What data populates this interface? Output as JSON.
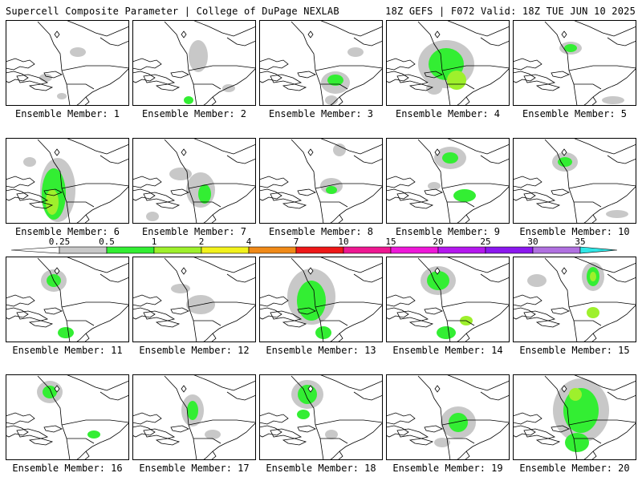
{
  "header": {
    "left_title": "Supercell Composite Parameter | College of DuPage NEXLAB",
    "right_title": "18Z GEFS | F072 Valid: 18Z TUE JUN 10 2025"
  },
  "colors": {
    "coastline": "#000000",
    "levels": [
      "#c8c8c8",
      "#33ee33",
      "#9ef02c",
      "#f2f21c",
      "#f08a18",
      "#ee1818",
      "#ee1891",
      "#ee18d8",
      "#b418ee",
      "#8b18ee",
      "#b070e0",
      "#30e6e6"
    ]
  },
  "colorbar": {
    "levels": [
      "0.25",
      "0.5",
      "1",
      "2",
      "4",
      "7",
      "10",
      "15",
      "20",
      "25",
      "30",
      "35"
    ]
  },
  "panels": [
    {
      "label": "Ensemble Member: 1",
      "blobs": [
        [
          50,
          72,
          8,
          5,
          0
        ],
        [
          90,
          40,
          10,
          6,
          0
        ],
        [
          70,
          95,
          6,
          4,
          0
        ]
      ]
    },
    {
      "label": "Ensemble Member: 2",
      "blobs": [
        [
          82,
          45,
          12,
          20,
          0
        ],
        [
          70,
          100,
          6,
          5,
          1
        ],
        [
          120,
          85,
          8,
          5,
          0
        ]
      ]
    },
    {
      "label": "Ensemble Member: 3",
      "blobs": [
        [
          95,
          78,
          18,
          14,
          0
        ],
        [
          95,
          75,
          10,
          7,
          1
        ],
        [
          90,
          100,
          8,
          6,
          0
        ],
        [
          120,
          40,
          10,
          6,
          0
        ]
      ]
    },
    {
      "label": "Ensemble Member: 4",
      "blobs": [
        [
          75,
          55,
          35,
          30,
          0
        ],
        [
          75,
          55,
          22,
          20,
          1
        ],
        [
          88,
          75,
          12,
          12,
          2
        ],
        [
          60,
          85,
          10,
          8,
          0
        ]
      ]
    },
    {
      "label": "Ensemble Member: 5",
      "blobs": [
        [
          72,
          35,
          14,
          8,
          0
        ],
        [
          72,
          35,
          8,
          5,
          1
        ],
        [
          125,
          100,
          14,
          5,
          0
        ]
      ]
    }
  ],
  "panels_row2": [
    {
      "label": "Ensemble Member: 6",
      "blobs": [
        [
          65,
          65,
          22,
          40,
          0
        ],
        [
          60,
          70,
          15,
          32,
          1
        ],
        [
          58,
          80,
          8,
          16,
          2
        ],
        [
          30,
          30,
          8,
          6,
          0
        ]
      ]
    },
    {
      "label": "Ensemble Member: 7",
      "blobs": [
        [
          85,
          65,
          18,
          22,
          0
        ],
        [
          90,
          70,
          8,
          12,
          1
        ],
        [
          60,
          45,
          14,
          8,
          0
        ],
        [
          25,
          98,
          8,
          6,
          0
        ]
      ]
    },
    {
      "label": "Ensemble Member: 8",
      "blobs": [
        [
          90,
          60,
          14,
          10,
          0
        ],
        [
          90,
          65,
          7,
          5,
          1
        ],
        [
          100,
          15,
          8,
          8,
          0
        ]
      ]
    },
    {
      "label": "Ensemble Member: 9",
      "blobs": [
        [
          80,
          25,
          20,
          14,
          0
        ],
        [
          80,
          25,
          10,
          7,
          1
        ],
        [
          98,
          72,
          14,
          8,
          1
        ],
        [
          60,
          60,
          8,
          5,
          0
        ]
      ]
    },
    {
      "label": "Ensemble Member: 10",
      "blobs": [
        [
          65,
          30,
          16,
          12,
          0
        ],
        [
          65,
          30,
          9,
          6,
          1
        ],
        [
          130,
          95,
          14,
          5,
          0
        ]
      ]
    }
  ],
  "panels_row3": [
    {
      "label": "Ensemble Member: 11",
      "blobs": [
        [
          60,
          30,
          16,
          14,
          0
        ],
        [
          60,
          30,
          9,
          8,
          1
        ],
        [
          75,
          95,
          10,
          7,
          1
        ]
      ]
    },
    {
      "label": "Ensemble Member: 12",
      "blobs": [
        [
          85,
          60,
          18,
          12,
          0
        ],
        [
          60,
          40,
          12,
          6,
          0
        ]
      ]
    },
    {
      "label": "Ensemble Member: 13",
      "blobs": [
        [
          65,
          50,
          30,
          35,
          0
        ],
        [
          65,
          55,
          18,
          25,
          1
        ],
        [
          80,
          95,
          10,
          8,
          1
        ]
      ]
    },
    {
      "label": "Ensemble Member: 14",
      "blobs": [
        [
          65,
          30,
          22,
          18,
          0
        ],
        [
          65,
          30,
          14,
          12,
          1
        ],
        [
          75,
          95,
          12,
          8,
          1
        ],
        [
          100,
          80,
          8,
          6,
          2
        ]
      ]
    },
    {
      "label": "Ensemble Member: 15",
      "blobs": [
        [
          100,
          25,
          14,
          18,
          0
        ],
        [
          100,
          25,
          8,
          12,
          1
        ],
        [
          100,
          25,
          4,
          6,
          2
        ],
        [
          100,
          70,
          8,
          7,
          2
        ],
        [
          30,
          30,
          12,
          8,
          0
        ]
      ]
    }
  ],
  "panels_row4": [
    {
      "label": "Ensemble Member: 16",
      "blobs": [
        [
          55,
          22,
          16,
          14,
          0
        ],
        [
          55,
          22,
          9,
          8,
          1
        ],
        [
          110,
          75,
          8,
          5,
          1
        ]
      ]
    },
    {
      "label": "Ensemble Member: 17",
      "blobs": [
        [
          75,
          45,
          14,
          20,
          0
        ],
        [
          75,
          45,
          7,
          12,
          1
        ],
        [
          100,
          75,
          10,
          6,
          0
        ]
      ]
    },
    {
      "label": "Ensemble Member: 18",
      "blobs": [
        [
          60,
          25,
          20,
          18,
          0
        ],
        [
          60,
          25,
          12,
          12,
          1
        ],
        [
          55,
          50,
          8,
          6,
          1
        ],
        [
          90,
          75,
          8,
          6,
          0
        ]
      ]
    },
    {
      "label": "Ensemble Member: 19",
      "blobs": [
        [
          90,
          60,
          22,
          20,
          0
        ],
        [
          90,
          60,
          12,
          12,
          1
        ],
        [
          70,
          85,
          10,
          6,
          0
        ]
      ]
    },
    {
      "label": "Ensemble Member: 20",
      "blobs": [
        [
          85,
          45,
          35,
          40,
          0
        ],
        [
          85,
          45,
          22,
          28,
          1
        ],
        [
          78,
          25,
          8,
          8,
          2
        ],
        [
          80,
          85,
          15,
          12,
          1
        ]
      ]
    }
  ]
}
